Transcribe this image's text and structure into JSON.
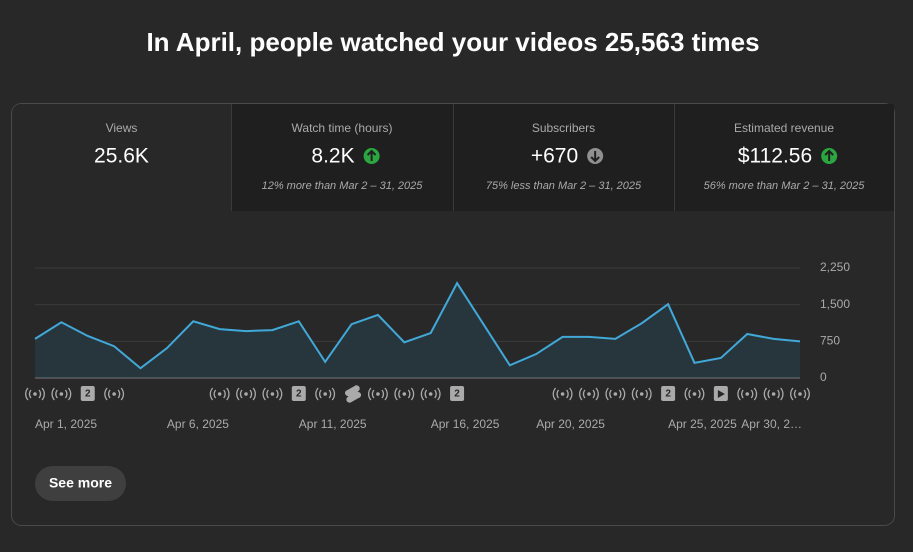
{
  "header": {
    "title": "In April, people watched your videos 25,563 times"
  },
  "tabs": [
    {
      "label": "Views",
      "value": "25.6K"
    },
    {
      "label": "Watch time (hours)",
      "value": "8.2K",
      "trend": "up",
      "comparison": "12% more than Mar 2 – 31, 2025"
    },
    {
      "label": "Subscribers",
      "value": "+670",
      "trend": "down",
      "comparison": "75% less than Mar 2 – 31, 2025"
    },
    {
      "label": "Estimated revenue",
      "value": "$112.56",
      "trend": "up",
      "comparison": "56% more than Mar 2 – 31, 2025"
    }
  ],
  "chart_data": {
    "type": "line",
    "color": "#41a8d8",
    "area_color": "#27363c",
    "categories": [
      "Apr 1, 2025",
      null,
      null,
      null,
      null,
      "Apr 6, 2025",
      null,
      null,
      null,
      null,
      "Apr 11, 2025",
      null,
      null,
      null,
      null,
      "Apr 16, 2025",
      null,
      null,
      null,
      "Apr 20, 2025",
      null,
      null,
      null,
      null,
      "Apr 25, 2025",
      null,
      null,
      null,
      null,
      "Apr 30, 2…"
    ],
    "values": [
      800,
      1140,
      860,
      650,
      200,
      610,
      1160,
      1000,
      960,
      980,
      1160,
      330,
      1100,
      1290,
      730,
      920,
      1940,
      1100,
      260,
      490,
      840,
      840,
      800,
      1120,
      1510,
      310,
      410,
      900,
      800,
      750
    ],
    "ylim": [
      0,
      2250
    ],
    "yticks": [
      0,
      750,
      {
        "value": 1500,
        "label": "1,500"
      },
      {
        "value": 2250,
        "label": "2,250"
      }
    ],
    "grid": true,
    "badges": [
      "2",
      "2",
      "2",
      "2"
    ]
  },
  "button": {
    "label": "See more"
  }
}
